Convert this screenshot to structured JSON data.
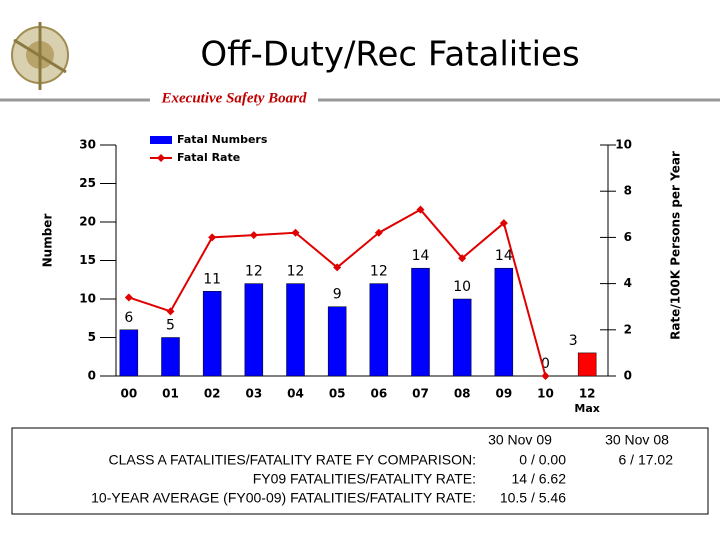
{
  "header": {
    "title": "Off-Duty/Rec Fatalities",
    "subtitle": "Executive Safety Board"
  },
  "chart_data": {
    "type": "bar",
    "categories": [
      "00",
      "01",
      "02",
      "03",
      "04",
      "05",
      "06",
      "07",
      "08",
      "09",
      "10",
      "12"
    ],
    "category_note": "Max",
    "ylabel": "Number",
    "y2label": "Rate/100K Persons per Year",
    "ylim": [
      0,
      30
    ],
    "yticks": [
      0,
      5,
      10,
      15,
      20,
      25,
      30
    ],
    "y2lim": [
      0,
      10
    ],
    "y2ticks": [
      0,
      2,
      4,
      6,
      8,
      10
    ],
    "legend": "top-left",
    "series": [
      {
        "name": "Fatal Numbers",
        "type": "bar",
        "color": "#0000ff",
        "last_color": "#ff0000",
        "values": [
          6,
          5,
          11,
          12,
          12,
          9,
          12,
          14,
          10,
          14,
          0,
          3
        ]
      },
      {
        "name": "Fatal Rate",
        "type": "line",
        "axis": "y2",
        "color": "#e00000",
        "values": [
          3.4,
          2.8,
          6.0,
          6.1,
          6.2,
          4.7,
          6.2,
          7.2,
          5.1,
          6.62,
          0,
          null
        ]
      }
    ]
  },
  "comparison": {
    "headers": [
      "30 Nov 09",
      "30 Nov 08"
    ],
    "rows": [
      {
        "label": "CLASS A FATALITIES/FATALITY RATE FY COMPARISON:",
        "values": [
          "0 / 0.00",
          "6 / 17.02"
        ]
      },
      {
        "label": "FY09 FATALITIES/FATALITY RATE:",
        "values": [
          "14 / 6.62"
        ]
      },
      {
        "label": "10-YEAR AVERAGE (FY00-09) FATALITIES/FATALITY RATE:",
        "values": [
          "10.5 / 5.46"
        ]
      }
    ]
  }
}
